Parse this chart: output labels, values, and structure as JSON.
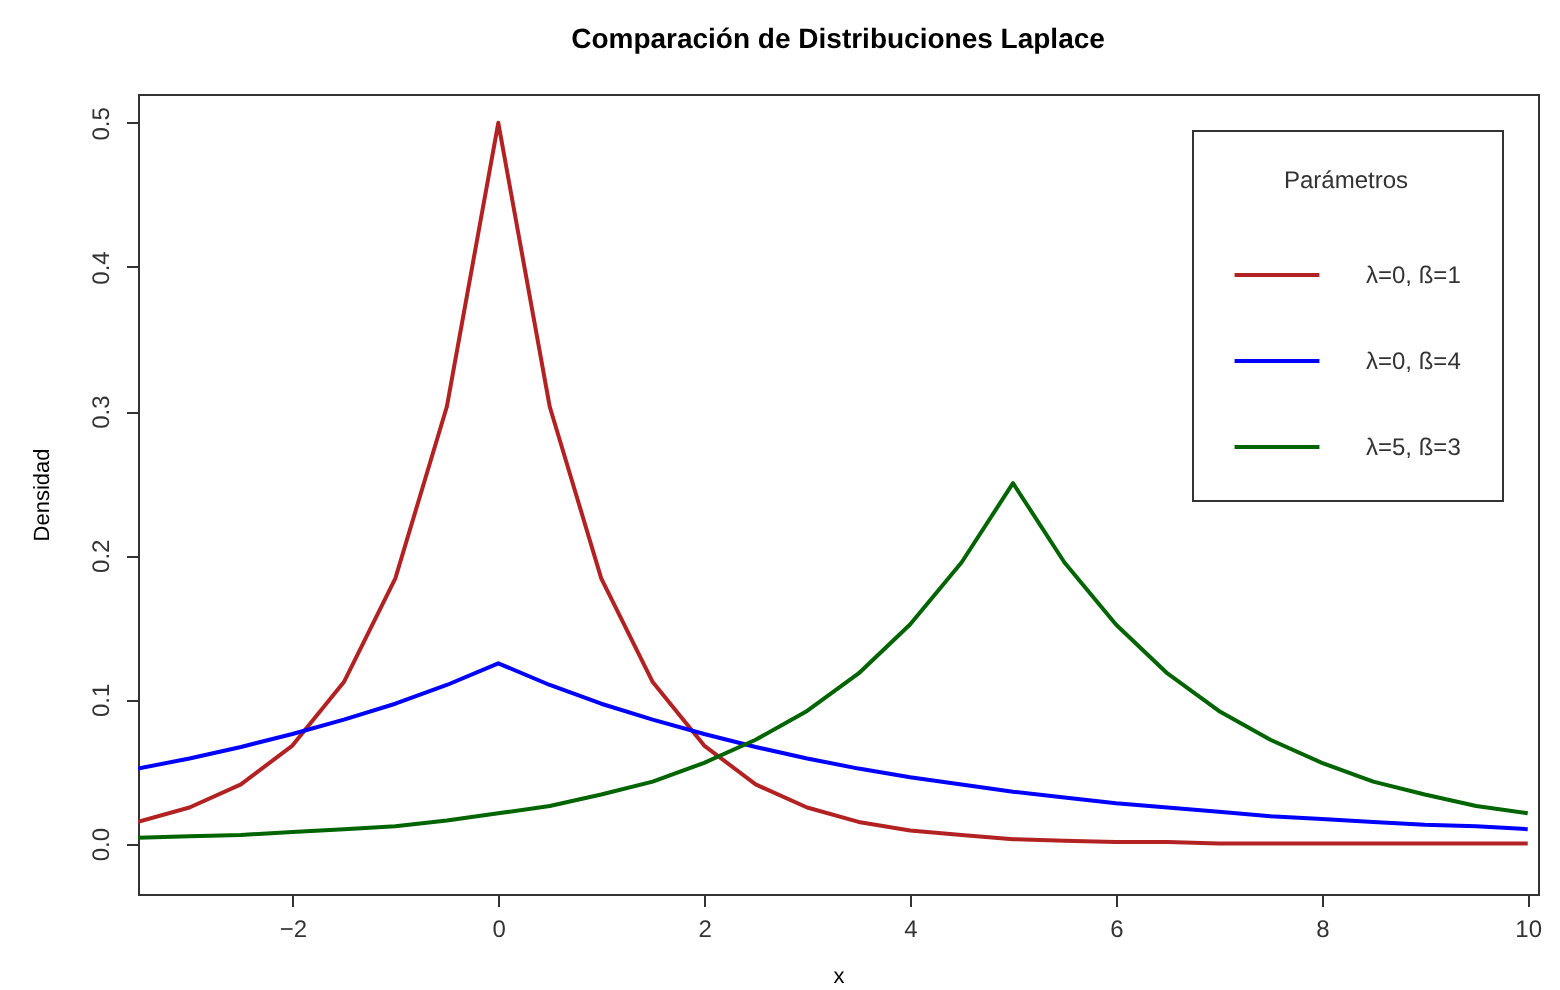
{
  "chart_data": {
    "type": "line",
    "title": "Comparación de Distribuciones Laplace",
    "xlabel": "x",
    "ylabel": "Densidad",
    "legend_title": "Parámetros",
    "legend": "top right",
    "grid": false,
    "line_style": "solid",
    "x": [
      -3.5,
      -3,
      -2.5,
      -2,
      -1.5,
      -1,
      -0.5,
      0,
      0.5,
      1,
      1.5,
      2,
      2.5,
      3,
      3.5,
      4,
      4.5,
      5,
      5.5,
      6,
      6.5,
      7,
      7.5,
      8,
      8.5,
      9,
      9.5,
      10
    ],
    "xlim": [
      -3.5,
      10.1
    ],
    "xticks": [
      -2,
      0,
      2,
      4,
      6,
      8,
      10
    ],
    "ylim": [
      -0.035,
      0.52
    ],
    "yticks": [
      {
        "value": 0,
        "label": "0.0"
      },
      0.1,
      0.2,
      0.3,
      0.4,
      0.5
    ],
    "series": [
      {
        "name": "λ=0, ß=1",
        "color": "#b22222",
        "values": [
          0.015,
          0.025,
          0.041,
          0.068,
          0.112,
          0.184,
          0.303,
          0.5,
          0.303,
          0.184,
          0.112,
          0.068,
          0.041,
          0.025,
          0.015,
          0.009,
          0.006,
          0.003,
          0.002,
          0.001,
          0.001,
          0,
          0,
          0,
          0,
          0,
          0,
          0
        ]
      },
      {
        "name": "λ=0, ß=4",
        "color": "#0000ff",
        "values": [
          0.052,
          0.059,
          0.067,
          0.076,
          0.086,
          0.097,
          0.11,
          0.125,
          0.11,
          0.097,
          0.086,
          0.076,
          0.067,
          0.059,
          0.052,
          0.046,
          0.041,
          0.036,
          0.032,
          0.028,
          0.025,
          0.022,
          0.019,
          0.017,
          0.015,
          0.013,
          0.012,
          0.01
        ]
      },
      {
        "name": "λ=5, ß=3",
        "color": "#006400",
        "values": [
          0.004,
          0.005,
          0.006,
          0.008,
          0.01,
          0.012,
          0.016,
          0.021,
          0.026,
          0.034,
          0.043,
          0.056,
          0.072,
          0.092,
          0.118,
          0.152,
          0.195,
          0.25,
          0.195,
          0.152,
          0.118,
          0.092,
          0.072,
          0.056,
          0.043,
          0.034,
          0.026,
          0.021
        ]
      }
    ]
  }
}
